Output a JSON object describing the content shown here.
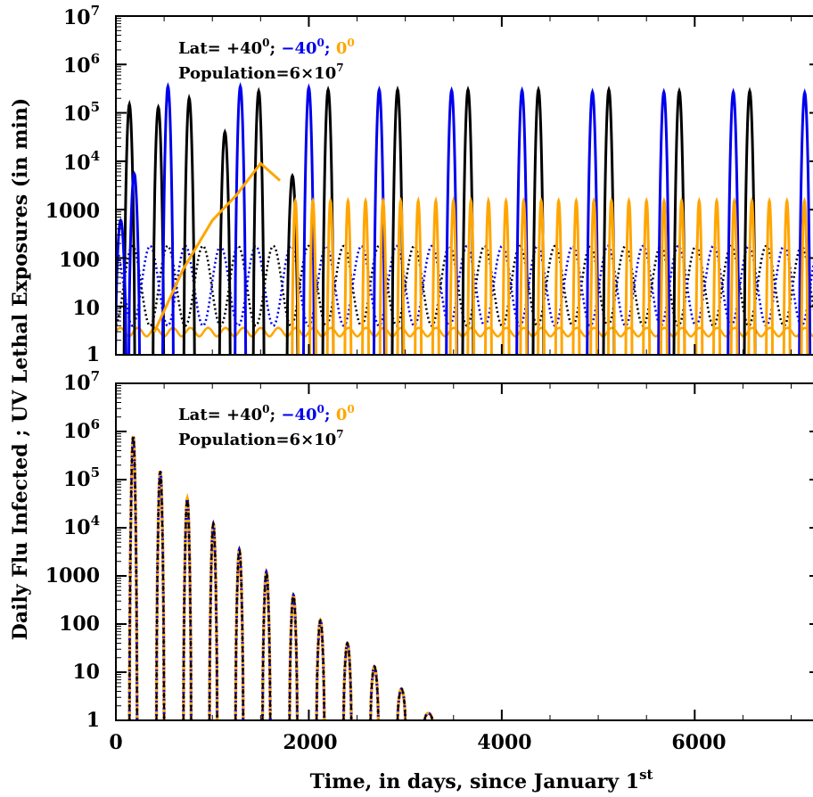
{
  "chart_data": [
    {
      "type": "line",
      "panel": "top",
      "y_scale": "log",
      "xlim": [
        0,
        7300
      ],
      "ylim": [
        1,
        10000000
      ],
      "annotation": {
        "lat_label": "Lat= ",
        "lat_north": "+40",
        "lat_south": "−40",
        "lat_equator": "0",
        "degree_sup": "0",
        "separator": "; ",
        "population_label": "Population=6×10",
        "population_exp": "7"
      },
      "series": [
        {
          "latitude": "+40",
          "kind": "flu_infected",
          "color": "#000000",
          "peak_days": [
            140,
            440,
            760,
            1130,
            1480,
            1830,
            2200,
            2920,
            3650,
            4380,
            5110,
            5840,
            6570
          ],
          "peak_values": [
            150000,
            130000,
            200000,
            40000,
            280000,
            5000,
            300000,
            300000,
            300000,
            300000,
            300000,
            280000,
            280000
          ]
        },
        {
          "latitude": "-40",
          "kind": "flu_infected",
          "color": "#0000ee",
          "peak_days": [
            50,
            190,
            540,
            1290,
            2000,
            2730,
            3480,
            4210,
            4940,
            5680,
            6400,
            7140
          ],
          "peak_values": [
            600,
            5500,
            350000,
            350000,
            330000,
            300000,
            290000,
            290000,
            270000,
            270000,
            270000,
            260000
          ]
        },
        {
          "latitude": "0",
          "kind": "flu_infected",
          "color": "#ffa500",
          "peak_values_note": "broad rise to ~9000 near day 1500, then ~1500 per half-year cycle",
          "rise": [
            [
              400,
              3
            ],
            [
              700,
              60
            ],
            [
              1000,
              600
            ],
            [
              1250,
              2000
            ],
            [
              1500,
              9000
            ],
            [
              1700,
              4000
            ]
          ]
        },
        {
          "latitude": "+40",
          "kind": "uv_lethal_exposure",
          "color": "#000000",
          "range": [
            4,
            180
          ]
        },
        {
          "latitude": "-40",
          "kind": "uv_lethal_exposure",
          "color": "#0000ee",
          "range": [
            4,
            180
          ]
        },
        {
          "latitude": "0",
          "kind": "uv_lethal_exposure",
          "color": "#ffa500",
          "range": [
            2.5,
            4
          ]
        }
      ]
    },
    {
      "type": "line",
      "panel": "bottom",
      "y_scale": "log",
      "xlim": [
        0,
        7300
      ],
      "ylim": [
        1,
        10000000
      ],
      "annotation": {
        "lat_label": "Lat= ",
        "lat_north": "+40",
        "lat_south": "−40",
        "lat_equator": "0",
        "degree_sup": "0",
        "separator": "; ",
        "population_label": "Population=6×10",
        "population_exp": "7"
      },
      "series": [
        {
          "latitude": "+40 / -40 / 0 (overlapping)",
          "colors": [
            "#000000",
            "#0000ee",
            "#ffa500"
          ],
          "peak_days": [
            180,
            460,
            740,
            1010,
            1280,
            1560,
            1840,
            2120,
            2400,
            2680,
            2960,
            3240
          ],
          "peak_values": [
            800000,
            150000,
            40000,
            12000,
            3500,
            1200,
            400,
            120,
            40,
            13,
            4.5,
            1.4
          ]
        }
      ]
    }
  ],
  "axes": {
    "x_ticks": [
      "0",
      "2000",
      "4000",
      "6000"
    ],
    "y_ticks": [
      "1",
      "10",
      "100",
      "1000"
    ],
    "y_pow_base": "10",
    "y_pow_exps": [
      "4",
      "5",
      "6",
      "7"
    ],
    "xlabel_main": "Time, in days, since January 1",
    "xlabel_sup": "st",
    "ylabel": "Daily Flu Infected ; UV Lethal Exposures (in min)"
  },
  "colors": {
    "north": "#000000",
    "south": "#0000ee",
    "equator": "#ffa500",
    "background": "#ffffff"
  }
}
